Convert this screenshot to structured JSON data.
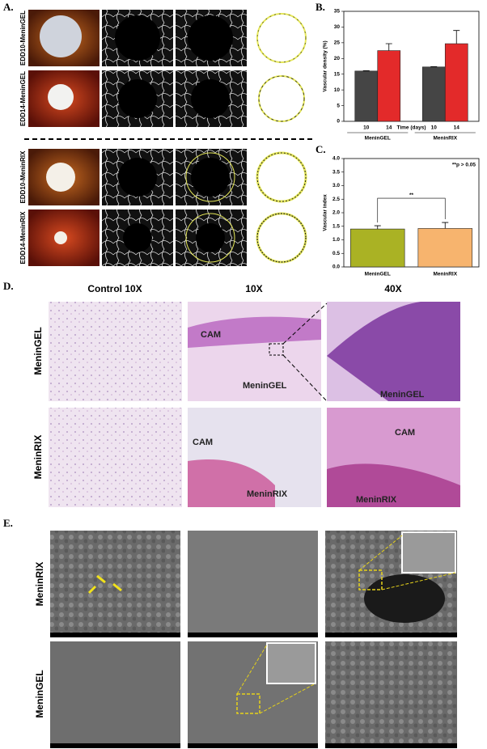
{
  "panel_a": {
    "label": "A.",
    "rows": [
      "EDD10-MeninGEL",
      "EDD14-MeninGEL",
      "EDD10-MeninRIX",
      "EDD14-MeninRIX"
    ]
  },
  "chart_data": [
    {
      "type": "bar",
      "panel_label": "B.",
      "y_label": "Vascular density (%)",
      "x_label": "Time (days)",
      "categories": [
        "MeninGEL",
        "MeninRIX"
      ],
      "series": [
        {
          "name": "10",
          "color": "#454545",
          "values": [
            16,
            17.3
          ],
          "errors": [
            0.1,
            0.1
          ]
        },
        {
          "name": "14",
          "color": "#e32a2a",
          "values": [
            22.5,
            24.7
          ],
          "errors": [
            2.2,
            4.2
          ]
        }
      ],
      "ylim": [
        0,
        35
      ],
      "yticks": [
        0,
        5,
        10,
        15,
        20,
        25,
        30,
        35
      ]
    },
    {
      "type": "bar",
      "panel_label": "C.",
      "y_label": "Vascular index",
      "annotation": "**p > 0.05",
      "bracket_label": "**",
      "categories": [
        "MeninGEL",
        "MeninRIX"
      ],
      "values": [
        1.4,
        1.42
      ],
      "errors": [
        0.12,
        0.22
      ],
      "colors": [
        "#aab224",
        "#f7b46e"
      ],
      "ylim": [
        0,
        4
      ],
      "yticks": [
        {
          "value": 0,
          "label": "0.0"
        },
        0.5,
        {
          "value": 1,
          "label": "1.0"
        },
        1.5,
        {
          "value": 2,
          "label": "2.0"
        },
        2.5,
        {
          "value": 3,
          "label": "3.0"
        },
        3.5,
        {
          "value": 4,
          "label": "4.0"
        }
      ]
    }
  ],
  "panel_d": {
    "label": "D.",
    "columns": [
      "Control 10X",
      "10X",
      "40X"
    ],
    "rows": [
      "MeninGEL",
      "MeninRIX"
    ],
    "image_labels": [
      [
        "CAM",
        "MeninGEL"
      ],
      [
        "MeninGEL"
      ],
      [
        "CAM",
        "MeninRIX"
      ],
      [
        "CAM",
        "MeninRIX"
      ]
    ]
  },
  "panel_e": {
    "label": "E.",
    "rows": [
      "MeninRIX",
      "MeninGEL"
    ]
  }
}
